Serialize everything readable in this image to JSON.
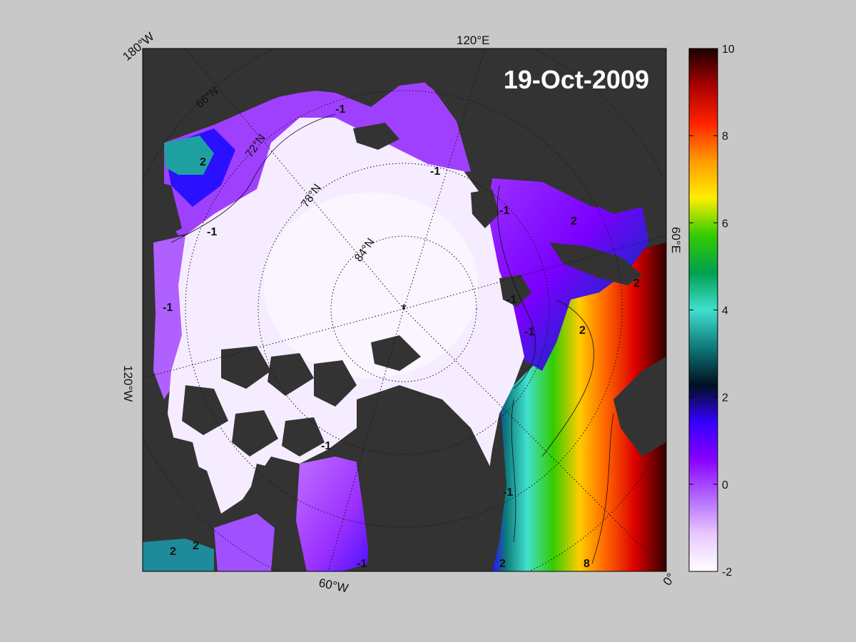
{
  "figure": {
    "date_label": "19-Oct-2009",
    "longitude_labels": [
      "180°W",
      "120°E",
      "60°E",
      "0°",
      "60°W",
      "120°W"
    ],
    "latitude_labels": [
      "66°N",
      "72°N",
      "78°N",
      "84°N"
    ],
    "contour_labels": [
      "-1",
      "-1",
      "-1",
      "-1",
      "-1",
      "-1",
      "-1",
      "-1",
      "-1",
      "2",
      "2",
      "2",
      "2",
      "2",
      "2",
      "2",
      "8"
    ]
  },
  "colorbar": {
    "ticks": [
      "10",
      "8",
      "6",
      "4",
      "2",
      "0",
      "-2"
    ],
    "min": -2,
    "max": 10,
    "stops": [
      "#ffffff",
      "#e8c8ff",
      "#b266ff",
      "#8800ff",
      "#3300ff",
      "#001020",
      "#0e7a7a",
      "#40e0d0",
      "#00a050",
      "#33cc00",
      "#ffee00",
      "#ff9900",
      "#ff2200",
      "#aa0000",
      "#1a0000"
    ]
  },
  "colors": {
    "background": "#c8c8c8",
    "land": "#333333",
    "ice_shelf": "#888888",
    "ice_pack": "#f6ecff"
  }
}
